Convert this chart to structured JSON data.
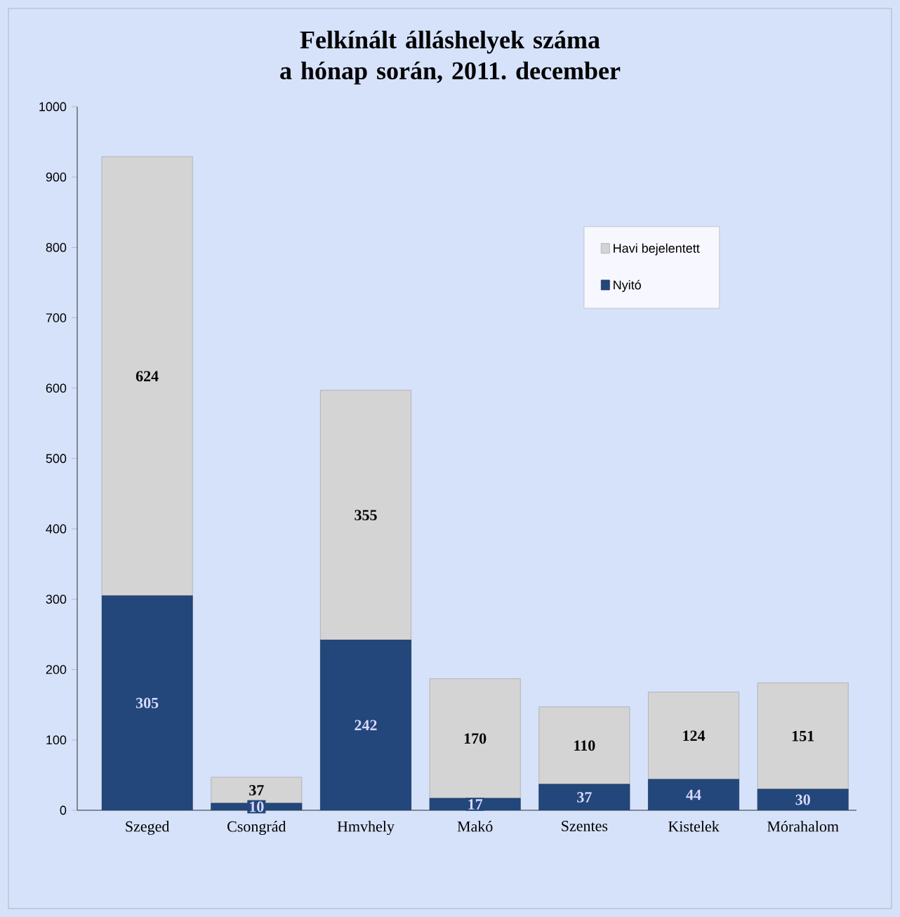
{
  "chart_data": {
    "type": "bar",
    "stacked": true,
    "title": "Felkínált álláshelyek száma a hónap során, 2011. december",
    "categories": [
      "Szeged",
      "Csongrád",
      "Hmvhely",
      "Makó",
      "Szentes",
      "Kistelek",
      "Mórahalom"
    ],
    "series": [
      {
        "name": "Nyitó",
        "color": "#23477a",
        "values": [
          305,
          10,
          242,
          17,
          37,
          44,
          30
        ]
      },
      {
        "name": "Havi bejelentett",
        "color": "#d4d4d4",
        "values": [
          624,
          37,
          355,
          170,
          110,
          124,
          151
        ]
      }
    ],
    "ylim": [
      0,
      1000
    ],
    "yticks": [
      0,
      100,
      200,
      300,
      400,
      500,
      600,
      700,
      800,
      900,
      1000
    ],
    "data_labels": true,
    "legend": "top right",
    "grid": false
  }
}
